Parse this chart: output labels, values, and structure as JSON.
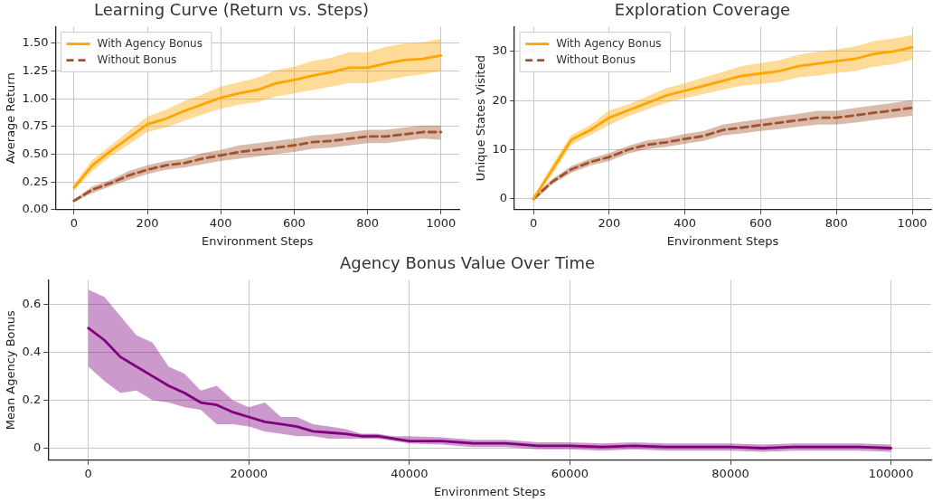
{
  "chart_data": [
    {
      "type": "line",
      "title": "Learning Curve (Return vs. Steps)",
      "xlabel": "Environment Steps",
      "ylabel": "Average Return",
      "x": [
        0,
        50,
        100,
        150,
        200,
        250,
        300,
        350,
        400,
        450,
        500,
        550,
        600,
        650,
        700,
        750,
        800,
        850,
        900,
        950,
        1000
      ],
      "series": [
        {
          "name": "With Agency Bonus",
          "color": "#ffa500",
          "line_style": "solid",
          "values": [
            0.2,
            0.4,
            0.53,
            0.65,
            0.77,
            0.82,
            0.89,
            0.95,
            1.01,
            1.05,
            1.08,
            1.14,
            1.17,
            1.21,
            1.24,
            1.28,
            1.28,
            1.32,
            1.35,
            1.36,
            1.39
          ],
          "lower": [
            0.17,
            0.35,
            0.48,
            0.59,
            0.7,
            0.74,
            0.8,
            0.86,
            0.91,
            0.95,
            0.97,
            1.02,
            1.05,
            1.08,
            1.11,
            1.14,
            1.14,
            1.17,
            1.2,
            1.22,
            1.25
          ],
          "upper": [
            0.23,
            0.45,
            0.58,
            0.71,
            0.84,
            0.9,
            0.98,
            1.04,
            1.11,
            1.15,
            1.19,
            1.26,
            1.29,
            1.34,
            1.37,
            1.42,
            1.42,
            1.47,
            1.5,
            1.51,
            1.54
          ]
        },
        {
          "name": "Without Bonus",
          "color": "#a0522d",
          "line_style": "dashed",
          "values": [
            0.08,
            0.18,
            0.24,
            0.31,
            0.36,
            0.4,
            0.42,
            0.46,
            0.49,
            0.52,
            0.54,
            0.56,
            0.58,
            0.61,
            0.62,
            0.64,
            0.66,
            0.66,
            0.68,
            0.7,
            0.7
          ],
          "lower": [
            0.07,
            0.15,
            0.21,
            0.27,
            0.32,
            0.36,
            0.38,
            0.41,
            0.44,
            0.46,
            0.48,
            0.5,
            0.52,
            0.55,
            0.56,
            0.58,
            0.6,
            0.6,
            0.62,
            0.64,
            0.63
          ],
          "upper": [
            0.09,
            0.21,
            0.27,
            0.35,
            0.4,
            0.44,
            0.46,
            0.51,
            0.54,
            0.58,
            0.6,
            0.62,
            0.64,
            0.67,
            0.68,
            0.7,
            0.72,
            0.72,
            0.74,
            0.76,
            0.76
          ]
        }
      ],
      "xlim": [
        -50,
        1050
      ],
      "xticks": [
        0,
        200,
        400,
        600,
        800,
        1000
      ],
      "ylim": [
        0,
        1.65
      ],
      "yticks": [
        {
          "value": 0,
          "label": "0.00"
        },
        {
          "value": 0.25,
          "label": "0.25"
        },
        {
          "value": 0.5,
          "label": "0.50"
        },
        {
          "value": 0.75,
          "label": "0.75"
        },
        {
          "value": 1,
          "label": "1.00"
        },
        {
          "value": 1.25,
          "label": "1.25"
        },
        {
          "value": 1.5,
          "label": "1.50"
        }
      ],
      "grid": true,
      "legend": "top left",
      "marker": "none"
    },
    {
      "type": "line",
      "title": "Exploration Coverage",
      "xlabel": "Environment Steps",
      "ylabel": "Unique States Visited",
      "x": [
        0,
        50,
        100,
        150,
        200,
        250,
        300,
        350,
        400,
        450,
        500,
        550,
        600,
        650,
        700,
        750,
        800,
        850,
        900,
        950,
        1000
      ],
      "series": [
        {
          "name": "With Agency Bonus",
          "color": "#ffa500",
          "line_style": "solid",
          "values": [
            0,
            6,
            12,
            14,
            16.5,
            18,
            19.5,
            21,
            22,
            23,
            24,
            25,
            25.5,
            26,
            27,
            27.5,
            28,
            28.5,
            29.5,
            30,
            30.8
          ],
          "lower": [
            -0.3,
            5,
            11,
            13,
            15,
            16.8,
            18.2,
            19.5,
            20.5,
            21.3,
            22.2,
            23,
            23.4,
            23.8,
            24.7,
            25.1,
            25.6,
            26,
            26.9,
            27.4,
            28.3
          ],
          "upper": [
            0.3,
            7,
            13,
            15,
            18,
            19.2,
            20.8,
            22.5,
            23.5,
            24.7,
            25.8,
            27,
            27.6,
            28.2,
            29.3,
            29.9,
            30.4,
            31,
            32.1,
            32.6,
            33.3
          ]
        },
        {
          "name": "Without Bonus",
          "color": "#a0522d",
          "line_style": "dashed",
          "values": [
            0,
            3.5,
            6,
            7.5,
            8.5,
            10,
            11,
            11.5,
            12.2,
            12.8,
            14,
            14.5,
            15,
            15.5,
            16,
            16.5,
            16.5,
            17,
            17.5,
            18,
            18.5
          ],
          "lower": [
            -0.5,
            3,
            5.3,
            6.8,
            7.7,
            9.2,
            10.1,
            10.6,
            11.2,
            11.8,
            12.9,
            13.3,
            13.8,
            14.2,
            14.7,
            15.1,
            15.1,
            15.5,
            16,
            16.5,
            16.9
          ],
          "upper": [
            0.5,
            4,
            6.7,
            8.2,
            9.3,
            10.8,
            11.9,
            12.4,
            13.2,
            13.8,
            15.1,
            15.7,
            16.2,
            16.8,
            17.3,
            17.9,
            17.9,
            18.5,
            19,
            19.5,
            20.1
          ]
        }
      ],
      "xlim": [
        -50,
        1050
      ],
      "xticks": [
        0,
        200,
        400,
        600,
        800,
        1000
      ],
      "ylim": [
        -2.2,
        35
      ],
      "yticks": [
        0,
        10,
        20,
        30
      ],
      "grid": true,
      "legend": "top left",
      "marker": "none"
    },
    {
      "type": "line",
      "title": "Agency Bonus Value Over Time",
      "xlabel": "Environment Steps",
      "ylabel": "Mean Agency Bonus",
      "x": [
        0,
        2000,
        4000,
        6000,
        8000,
        10000,
        12000,
        14000,
        16000,
        18000,
        20000,
        22000,
        24000,
        26000,
        28000,
        30000,
        32000,
        34000,
        36000,
        38000,
        40000,
        44000,
        48000,
        52000,
        56000,
        60000,
        64000,
        68000,
        72000,
        76000,
        80000,
        84000,
        88000,
        92000,
        96000,
        100000
      ],
      "series": [
        {
          "color": "#800080",
          "line_style": "solid",
          "values": [
            0.5,
            0.45,
            0.38,
            0.34,
            0.3,
            0.26,
            0.23,
            0.19,
            0.18,
            0.15,
            0.13,
            0.11,
            0.1,
            0.09,
            0.07,
            0.065,
            0.06,
            0.05,
            0.05,
            0.04,
            0.03,
            0.03,
            0.02,
            0.02,
            0.01,
            0.01,
            0.005,
            0.01,
            0.005,
            0.005,
            0.005,
            0,
            0.005,
            0.005,
            0.005,
            0
          ],
          "lower": [
            0.34,
            0.28,
            0.23,
            0.24,
            0.2,
            0.19,
            0.17,
            0.16,
            0.1,
            0.1,
            0.09,
            0.07,
            0.06,
            0.05,
            0.05,
            0.04,
            0.04,
            0.04,
            0.04,
            0.03,
            0.02,
            0.015,
            0.005,
            0.005,
            -0.005,
            -0.005,
            -0.01,
            -0.005,
            -0.01,
            -0.01,
            -0.01,
            -0.015,
            -0.01,
            -0.01,
            -0.01,
            -0.015
          ],
          "upper": [
            0.66,
            0.63,
            0.55,
            0.47,
            0.44,
            0.34,
            0.31,
            0.24,
            0.26,
            0.2,
            0.17,
            0.19,
            0.13,
            0.13,
            0.1,
            0.09,
            0.08,
            0.06,
            0.06,
            0.05,
            0.05,
            0.045,
            0.035,
            0.035,
            0.025,
            0.025,
            0.02,
            0.025,
            0.02,
            0.02,
            0.02,
            0.015,
            0.02,
            0.02,
            0.02,
            0.015
          ]
        }
      ],
      "xlim": [
        -5000,
        105000
      ],
      "xticks": [
        0,
        20000,
        40000,
        60000,
        80000,
        100000
      ],
      "ylim": [
        -0.05,
        0.7
      ],
      "yticks": [
        0,
        0.2,
        0.4,
        0.6
      ],
      "grid": true,
      "legend": false,
      "marker": "none"
    }
  ]
}
